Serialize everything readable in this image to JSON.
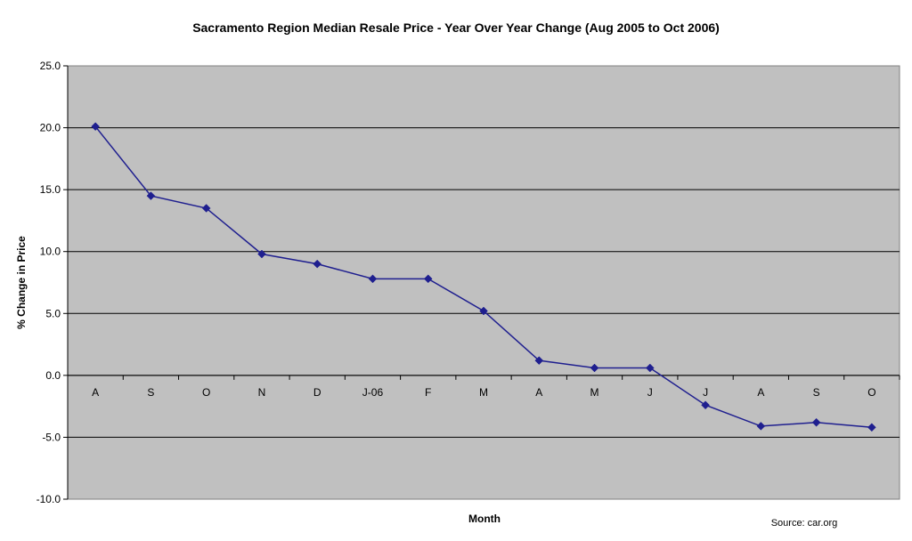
{
  "chart_data": {
    "type": "line",
    "title": "Sacramento Region Median Resale Price - Year Over Year Change (Aug 2005 to Oct 2006)",
    "xlabel": "Month",
    "ylabel": "% Change in Price",
    "source": "Source: car.org",
    "categories": [
      "A",
      "S",
      "O",
      "N",
      "D",
      "J-06",
      "F",
      "M",
      "A",
      "M",
      "J",
      "J",
      "A",
      "S",
      "O"
    ],
    "series": [
      {
        "values": [
          20.1,
          14.5,
          13.5,
          9.8,
          9.0,
          7.8,
          7.8,
          5.2,
          1.2,
          0.6,
          0.6,
          -2.4,
          -4.1,
          -3.8,
          -4.2
        ],
        "color": "#1f1f8f"
      }
    ],
    "ylim": [
      -10,
      25
    ],
    "yticks": [
      "25.0",
      "20.0",
      "15.0",
      "10.0",
      "5.0",
      "0.0",
      "-5.0",
      "-10.0"
    ],
    "ytick_values": [
      25,
      20,
      15,
      10,
      5,
      0,
      -5,
      -10
    ],
    "grid": true,
    "legend": "none",
    "plot_background": "#c0c0c0",
    "gridline_color": "#000000"
  }
}
